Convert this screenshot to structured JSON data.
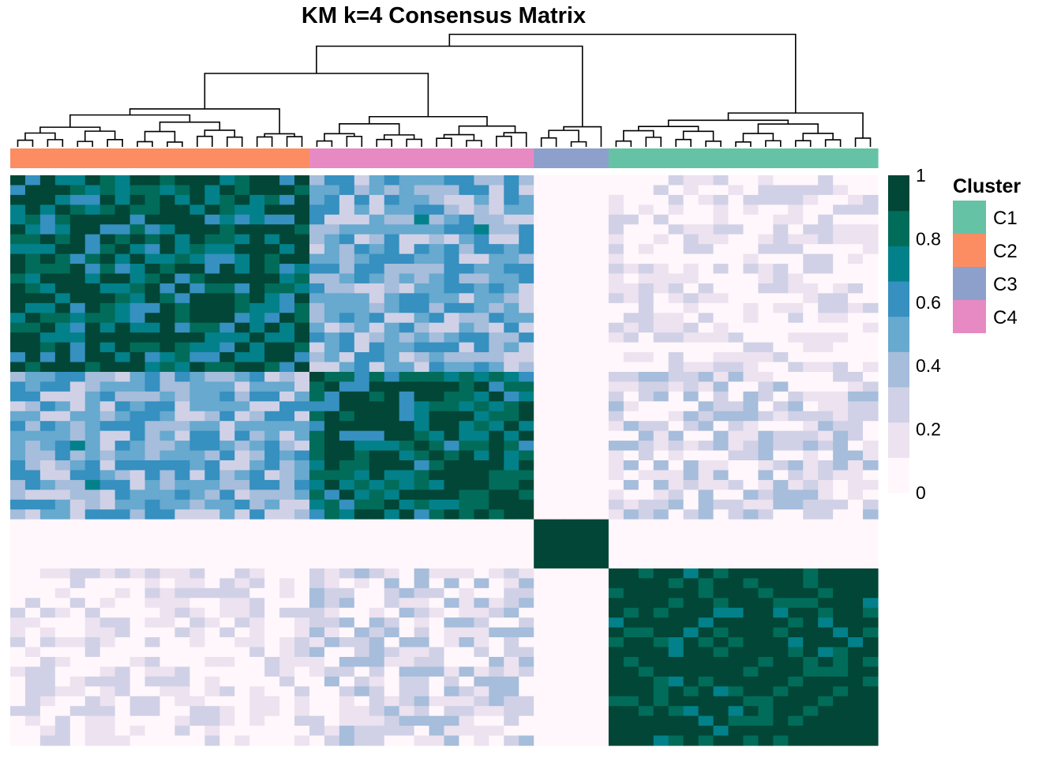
{
  "chart_data": {
    "type": "heatmap",
    "title": "KM k=4 Consensus Matrix",
    "xlabel": "",
    "ylabel": "",
    "color_scale": {
      "ticks": [
        1,
        0.8,
        0.6,
        0.4,
        0.2,
        0
      ],
      "tick_labels": [
        "1",
        "0.8",
        "0.6",
        "0.4",
        "0.2",
        "0"
      ],
      "colors": [
        "#FFF7FB",
        "#ECE2F0",
        "#D0D1E6",
        "#A6BDDB",
        "#67A9CF",
        "#3690C0",
        "#02818A",
        "#016C59",
        "#014636"
      ]
    },
    "legend": {
      "title": "Cluster",
      "entries": [
        {
          "label": "C1",
          "color": "#66C2A5"
        },
        {
          "label": "C2",
          "color": "#FC8D62"
        },
        {
          "label": "C3",
          "color": "#8DA0CB"
        },
        {
          "label": "C4",
          "color": "#E78AC3"
        }
      ],
      "placement": "right"
    },
    "sample_order_clusters": [
      "C2",
      "C2",
      "C2",
      "C2",
      "C2",
      "C2",
      "C2",
      "C2",
      "C2",
      "C2",
      "C2",
      "C2",
      "C2",
      "C2",
      "C2",
      "C2",
      "C2",
      "C2",
      "C2",
      "C2",
      "C4",
      "C4",
      "C4",
      "C4",
      "C4",
      "C4",
      "C4",
      "C4",
      "C4",
      "C4",
      "C4",
      "C4",
      "C4",
      "C4",
      "C4",
      "C3",
      "C3",
      "C3",
      "C3",
      "C3",
      "C1",
      "C1",
      "C1",
      "C1",
      "C1",
      "C1",
      "C1",
      "C1",
      "C1",
      "C1",
      "C1",
      "C1",
      "C1",
      "C1",
      "C1",
      "C1",
      "C1",
      "C1"
    ],
    "cluster_block_mean_consensus": {
      "clusters": [
        "C2",
        "C4",
        "C3",
        "C1"
      ],
      "matrix": [
        [
          0.85,
          0.45,
          0.0,
          0.1
        ],
        [
          0.45,
          0.85,
          0.0,
          0.2
        ],
        [
          0.0,
          0.0,
          1.0,
          0.0
        ],
        [
          0.1,
          0.2,
          0.0,
          0.97
        ]
      ]
    },
    "dendrogram": "hierarchical clustering of samples shown above the matrix"
  }
}
